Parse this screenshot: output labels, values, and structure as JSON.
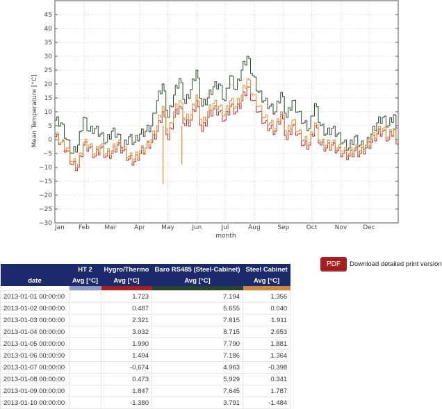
{
  "chart_data": {
    "type": "line",
    "title": "",
    "xlabel": "month",
    "ylabel": "Mean Temperature [°C]",
    "ylim": [
      -30,
      50
    ],
    "yticks": [
      -30,
      -25,
      -20,
      -15,
      -10,
      -5,
      0,
      5,
      10,
      15,
      20,
      25,
      30,
      35,
      40,
      45
    ],
    "xticks": [
      "Jan",
      "Feb",
      "Mar",
      "Apr",
      "May",
      "Jun",
      "Jul",
      "Aug",
      "Sep",
      "Oct",
      "Nov",
      "Dec"
    ],
    "grid": true,
    "legend": "none",
    "step": true,
    "x_days": [
      0,
      6,
      12,
      18,
      24,
      30,
      36,
      42,
      48,
      54,
      60,
      66,
      72,
      78,
      84,
      90,
      96,
      102,
      108,
      114,
      120,
      126,
      132,
      138,
      144,
      150,
      156,
      162,
      168,
      174,
      180,
      186,
      192,
      198,
      204,
      210,
      216,
      222,
      228,
      234,
      240,
      246,
      252,
      258,
      264,
      270,
      276,
      282,
      288,
      294,
      300,
      306,
      312,
      318,
      324,
      330,
      336,
      342,
      348,
      354,
      360,
      364
    ],
    "series": [
      {
        "name": "Baro RS485 (Steel-Cabinet)",
        "color": "#2d4a2d",
        "values": [
          7,
          6,
          0,
          -5,
          -2,
          8,
          3,
          4,
          2,
          -1,
          3,
          2,
          -3,
          1,
          -1,
          2,
          3,
          5,
          14,
          20,
          8,
          16,
          22,
          13,
          18,
          25,
          12,
          15,
          19,
          20,
          14,
          23,
          18,
          25,
          30,
          23,
          17,
          14,
          12,
          10,
          17,
          8,
          14,
          10,
          6,
          4,
          13,
          5,
          2,
          4,
          2,
          -1,
          -3,
          1,
          -2,
          -2,
          2,
          6,
          8,
          5,
          9,
          4
        ]
      },
      {
        "name": "Hygro/Thermo",
        "color": "#b03030",
        "values": [
          1,
          -1,
          -4,
          -9,
          -10,
          -2,
          -3,
          -6,
          -3,
          -6,
          -5,
          -2,
          -4,
          -7,
          -8,
          -5,
          -3,
          -1,
          3,
          10,
          0,
          8,
          12,
          5,
          7,
          14,
          3,
          8,
          11,
          10,
          7,
          12,
          10,
          14,
          19,
          14,
          10,
          6,
          4,
          3,
          9,
          0,
          5,
          2,
          -2,
          -2,
          5,
          -2,
          -3,
          -2,
          -4,
          -5,
          -6,
          -4,
          -5,
          -3,
          -1,
          2,
          3,
          0,
          4,
          -2
        ]
      },
      {
        "name": "Steel Cabinet",
        "color": "#d98a3a",
        "values": [
          2,
          -1,
          -3,
          -8,
          -9,
          -1,
          -2,
          -5,
          -2,
          -5,
          -4,
          -1,
          -3,
          -6,
          -7,
          -4,
          -3,
          0,
          5,
          12,
          2,
          10,
          14,
          7,
          9,
          16,
          5,
          10,
          13,
          12,
          9,
          14,
          12,
          16,
          22,
          16,
          12,
          8,
          6,
          4,
          10,
          2,
          7,
          3,
          0,
          -1,
          6,
          -1,
          -2,
          -1,
          -3,
          -4,
          -5,
          -3,
          -4,
          -2,
          0,
          3,
          4,
          1,
          4,
          -1
        ]
      }
    ],
    "spikes": [
      {
        "series": "Steel Cabinet",
        "day": 115,
        "value": -16
      },
      {
        "series": "Steel Cabinet",
        "day": 135,
        "value": -9
      }
    ]
  },
  "download": {
    "pdf_label": "PDF",
    "text": "Download detailed print version"
  },
  "table": {
    "group_headers": [
      "",
      "HT 2",
      "Hygro/Thermo",
      "Baro RS485 (Steel-Cabinet)",
      "Steel Cabinet"
    ],
    "sub_headers": [
      "date",
      "Avg [°C]",
      "Avg [°C]",
      "Avg [°C]",
      "Avg [°C]"
    ],
    "column_colors": [
      "#ffffff",
      "#8f9cc4",
      "#a52121",
      "#26452a",
      "#d08a40"
    ],
    "rows": [
      [
        "2013-01-01 00:00:00",
        "",
        "1.723",
        "7.194",
        "1.356"
      ],
      [
        "2013-01-02 00:00:00",
        "",
        "0.487",
        "5.655",
        "0.040"
      ],
      [
        "2013-01-03 00:00:00",
        "",
        "2.321",
        "7.815",
        "1.911"
      ],
      [
        "2013-01-04 00:00:00",
        "",
        "3.032",
        "8.715",
        "2.653"
      ],
      [
        "2013-01-05 00:00:00",
        "",
        "1.990",
        "7.790",
        "1.881"
      ],
      [
        "2013-01-06 00:00:00",
        "",
        "1.494",
        "7.186",
        "1.364"
      ],
      [
        "2013-01-07 00:00:00",
        "",
        "-0.674",
        "4.963",
        "-0.398"
      ],
      [
        "2013-01-08 00:00:00",
        "",
        "0.473",
        "5.929",
        "0.341"
      ],
      [
        "2013-01-09 00:00:00",
        "",
        "1.847",
        "7.645",
        "1.787"
      ],
      [
        "2013-01-10 00:00:00",
        "",
        "-1.380",
        "3.791",
        "-1.484"
      ]
    ]
  }
}
